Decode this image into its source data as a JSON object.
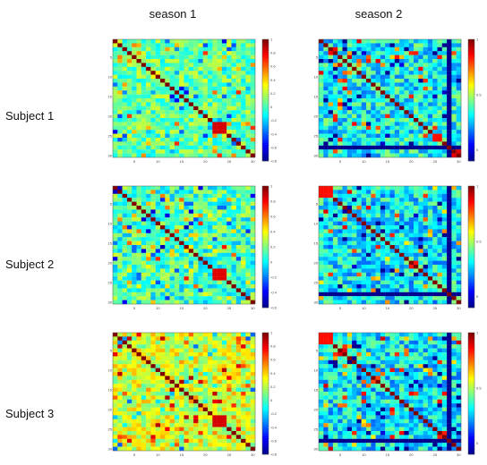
{
  "columns": [
    "season 1",
    "season 2"
  ],
  "rows": [
    "Subject 1",
    "Subject 2",
    "Subject 3"
  ],
  "chart_data": {
    "type": "heatmap",
    "title": "",
    "n": 30,
    "x_ticks": [
      "5",
      "10",
      "15",
      "20",
      "25",
      "30"
    ],
    "y_ticks": [
      "5",
      "10",
      "15",
      "20",
      "25",
      "30"
    ],
    "colormap": [
      "#00008f",
      "#0000ff",
      "#0080ff",
      "#00ffff",
      "#80ff80",
      "#ffff00",
      "#ff8000",
      "#ff0000",
      "#800000"
    ],
    "panels": [
      {
        "row": "Subject 1",
        "column": "season 1",
        "vmin": -0.8,
        "vmax": 1,
        "colorbar_ticks": [
          "1",
          "0.8",
          "0.6",
          "0.4",
          "0.2",
          "0",
          "-0.2",
          "-0.4",
          "-0.6",
          "-0.8"
        ],
        "base": 0.05,
        "noise": 0.22,
        "low_rows": [],
        "hot_block": [
          21,
          23
        ]
      },
      {
        "row": "Subject 1",
        "column": "season 2",
        "vmin": -0.1,
        "vmax": 1,
        "colorbar_ticks": [
          "1",
          "0.5",
          "0"
        ],
        "base": 0.32,
        "noise": 0.16,
        "low_rows": [
          27
        ],
        "hot_block": [
          24,
          25
        ]
      },
      {
        "row": "Subject 2",
        "column": "season 1",
        "vmin": -0.6,
        "vmax": 1,
        "colorbar_ticks": [
          "1",
          "0.8",
          "0.6",
          "0.4",
          "0.2",
          "0",
          "-0.2",
          "-0.4",
          "-0.6"
        ],
        "base": 0.1,
        "noise": 0.22,
        "low_rows": [],
        "hot_block": [
          21,
          23
        ]
      },
      {
        "row": "Subject 2",
        "column": "season 2",
        "vmin": -0.1,
        "vmax": 1,
        "colorbar_ticks": [
          "1",
          "0.5",
          "0"
        ],
        "base": 0.3,
        "noise": 0.16,
        "low_rows": [
          27
        ],
        "hot_block": [
          0,
          2
        ]
      },
      {
        "row": "Subject 3",
        "column": "season 1",
        "vmin": -0.8,
        "vmax": 1,
        "colorbar_ticks": [
          "1",
          "0.8",
          "0.6",
          "0.4",
          "0.2",
          "0",
          "-0.2",
          "-0.4",
          "-0.6",
          "-0.8"
        ],
        "base": 0.25,
        "noise": 0.22,
        "low_rows": [],
        "hot_block": [
          21,
          23
        ]
      },
      {
        "row": "Subject 3",
        "column": "season 2",
        "vmin": -0.1,
        "vmax": 1,
        "colorbar_ticks": [
          "1",
          "0.5",
          "0"
        ],
        "base": 0.3,
        "noise": 0.16,
        "low_rows": [
          27
        ],
        "hot_block": [
          0,
          2
        ]
      }
    ]
  }
}
